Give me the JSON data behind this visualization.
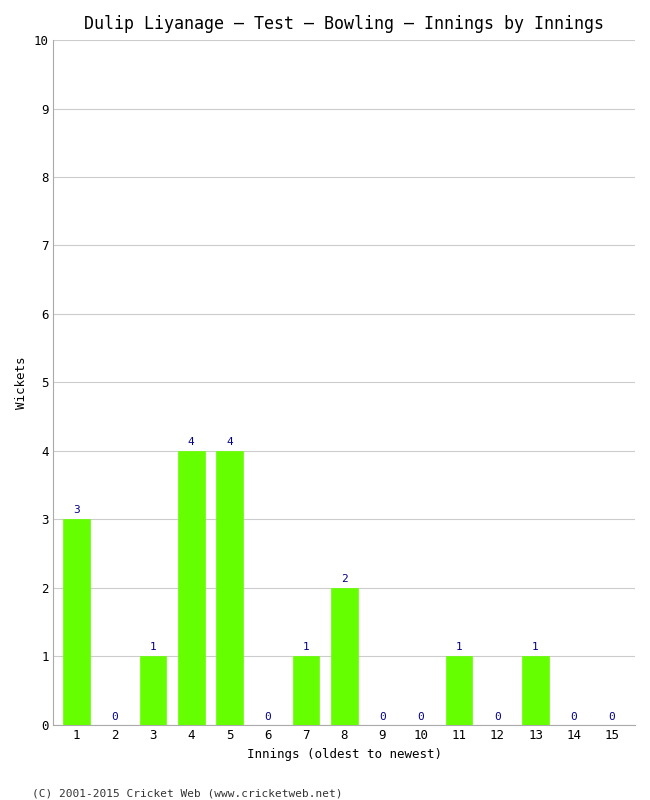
{
  "title": "Dulip Liyanage – Test – Bowling – Innings by Innings",
  "xlabel": "Innings (oldest to newest)",
  "ylabel": "Wickets",
  "categories": [
    1,
    2,
    3,
    4,
    5,
    6,
    7,
    8,
    9,
    10,
    11,
    12,
    13,
    14,
    15
  ],
  "values": [
    3,
    0,
    1,
    4,
    4,
    0,
    1,
    2,
    0,
    0,
    1,
    0,
    1,
    0,
    0
  ],
  "bar_color": "#66ff00",
  "bar_edge_color": "#66ff00",
  "label_color": "#000088",
  "ylim": [
    0,
    10
  ],
  "yticks": [
    0,
    1,
    2,
    3,
    4,
    5,
    6,
    7,
    8,
    9,
    10
  ],
  "background_color": "#ffffff",
  "plot_bg_color": "#ffffff",
  "grid_color": "#cccccc",
  "title_fontsize": 12,
  "axis_label_fontsize": 9,
  "tick_fontsize": 9,
  "label_fontsize": 8,
  "footer": "(C) 2001-2015 Cricket Web (www.cricketweb.net)"
}
